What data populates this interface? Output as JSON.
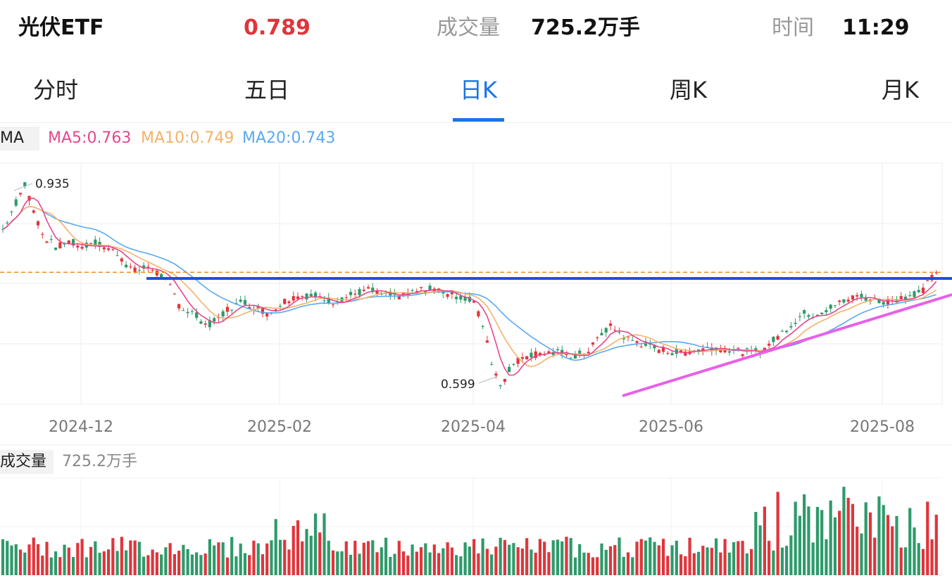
{
  "header": {
    "name": "光伏ETF",
    "price": "0.789",
    "volume_label": "成交量",
    "volume_value": "725.2万手",
    "time_label": "时间",
    "time_value": "11:29"
  },
  "tabs": [
    {
      "label": "分时",
      "active": false
    },
    {
      "label": "五日",
      "active": false
    },
    {
      "label": "日K",
      "active": true
    },
    {
      "label": "周K",
      "active": false
    },
    {
      "label": "月K",
      "active": false
    }
  ],
  "ma_legend": {
    "tag": "MA",
    "ma5": "MA5:0.763",
    "ma10": "MA10:0.749",
    "ma20": "MA20:0.743"
  },
  "volume_panel": {
    "tag": "成交量",
    "value": "725.2万手"
  },
  "colors": {
    "up": "#e0353b",
    "down": "#2e9a6b",
    "ma5": "#e6478b",
    "ma10": "#f4b26a",
    "ma20": "#5aa9f0",
    "accent": "#1a73e8",
    "support_line": "#e860e8",
    "resistance_line": "#1f4fe0",
    "dashed_price_line": "#f08a24"
  },
  "chart_data": {
    "type": "candlestick",
    "x_ticks": [
      "2024-12",
      "2025-02",
      "2025-04",
      "2025-06",
      "2025-08"
    ],
    "annotations": [
      {
        "label": "0.935",
        "kind": "high"
      },
      {
        "label": "0.599",
        "kind": "low"
      }
    ],
    "last_close": 0.789,
    "high": 0.935,
    "low": 0.599,
    "ylim": [
      0.57,
      0.97
    ],
    "grid": true,
    "price_path": [
      [
        0,
        0.86
      ],
      [
        2,
        0.89
      ],
      [
        4,
        0.92
      ],
      [
        5,
        0.935
      ],
      [
        7,
        0.89
      ],
      [
        9,
        0.85
      ],
      [
        12,
        0.83
      ],
      [
        15,
        0.84
      ],
      [
        18,
        0.83
      ],
      [
        20,
        0.84
      ],
      [
        23,
        0.83
      ],
      [
        26,
        0.82
      ],
      [
        28,
        0.8
      ],
      [
        30,
        0.79
      ],
      [
        33,
        0.8
      ],
      [
        36,
        0.78
      ],
      [
        38,
        0.76
      ],
      [
        40,
        0.73
      ],
      [
        43,
        0.72
      ],
      [
        46,
        0.7
      ],
      [
        48,
        0.71
      ],
      [
        51,
        0.73
      ],
      [
        54,
        0.74
      ],
      [
        57,
        0.73
      ],
      [
        60,
        0.72
      ],
      [
        63,
        0.74
      ],
      [
        66,
        0.75
      ],
      [
        70,
        0.75
      ],
      [
        74,
        0.74
      ],
      [
        78,
        0.75
      ],
      [
        82,
        0.76
      ],
      [
        86,
        0.75
      ],
      [
        90,
        0.75
      ],
      [
        94,
        0.76
      ],
      [
        98,
        0.76
      ],
      [
        102,
        0.75
      ],
      [
        106,
        0.74
      ],
      [
        108,
        0.7
      ],
      [
        110,
        0.64
      ],
      [
        112,
        0.6
      ],
      [
        114,
        0.63
      ],
      [
        117,
        0.65
      ],
      [
        121,
        0.655
      ],
      [
        125,
        0.655
      ],
      [
        129,
        0.65
      ],
      [
        132,
        0.66
      ],
      [
        135,
        0.69
      ],
      [
        137,
        0.7
      ],
      [
        140,
        0.68
      ],
      [
        144,
        0.67
      ],
      [
        148,
        0.66
      ],
      [
        152,
        0.655
      ],
      [
        156,
        0.66
      ],
      [
        160,
        0.665
      ],
      [
        164,
        0.66
      ],
      [
        168,
        0.655
      ],
      [
        171,
        0.66
      ],
      [
        174,
        0.68
      ],
      [
        177,
        0.7
      ],
      [
        180,
        0.72
      ],
      [
        183,
        0.72
      ],
      [
        186,
        0.73
      ],
      [
        189,
        0.74
      ],
      [
        192,
        0.75
      ],
      [
        195,
        0.745
      ],
      [
        198,
        0.74
      ],
      [
        201,
        0.745
      ],
      [
        204,
        0.75
      ],
      [
        207,
        0.76
      ],
      [
        210,
        0.789
      ]
    ],
    "volume": {
      "unit": "万手",
      "last": 725.2
    }
  }
}
